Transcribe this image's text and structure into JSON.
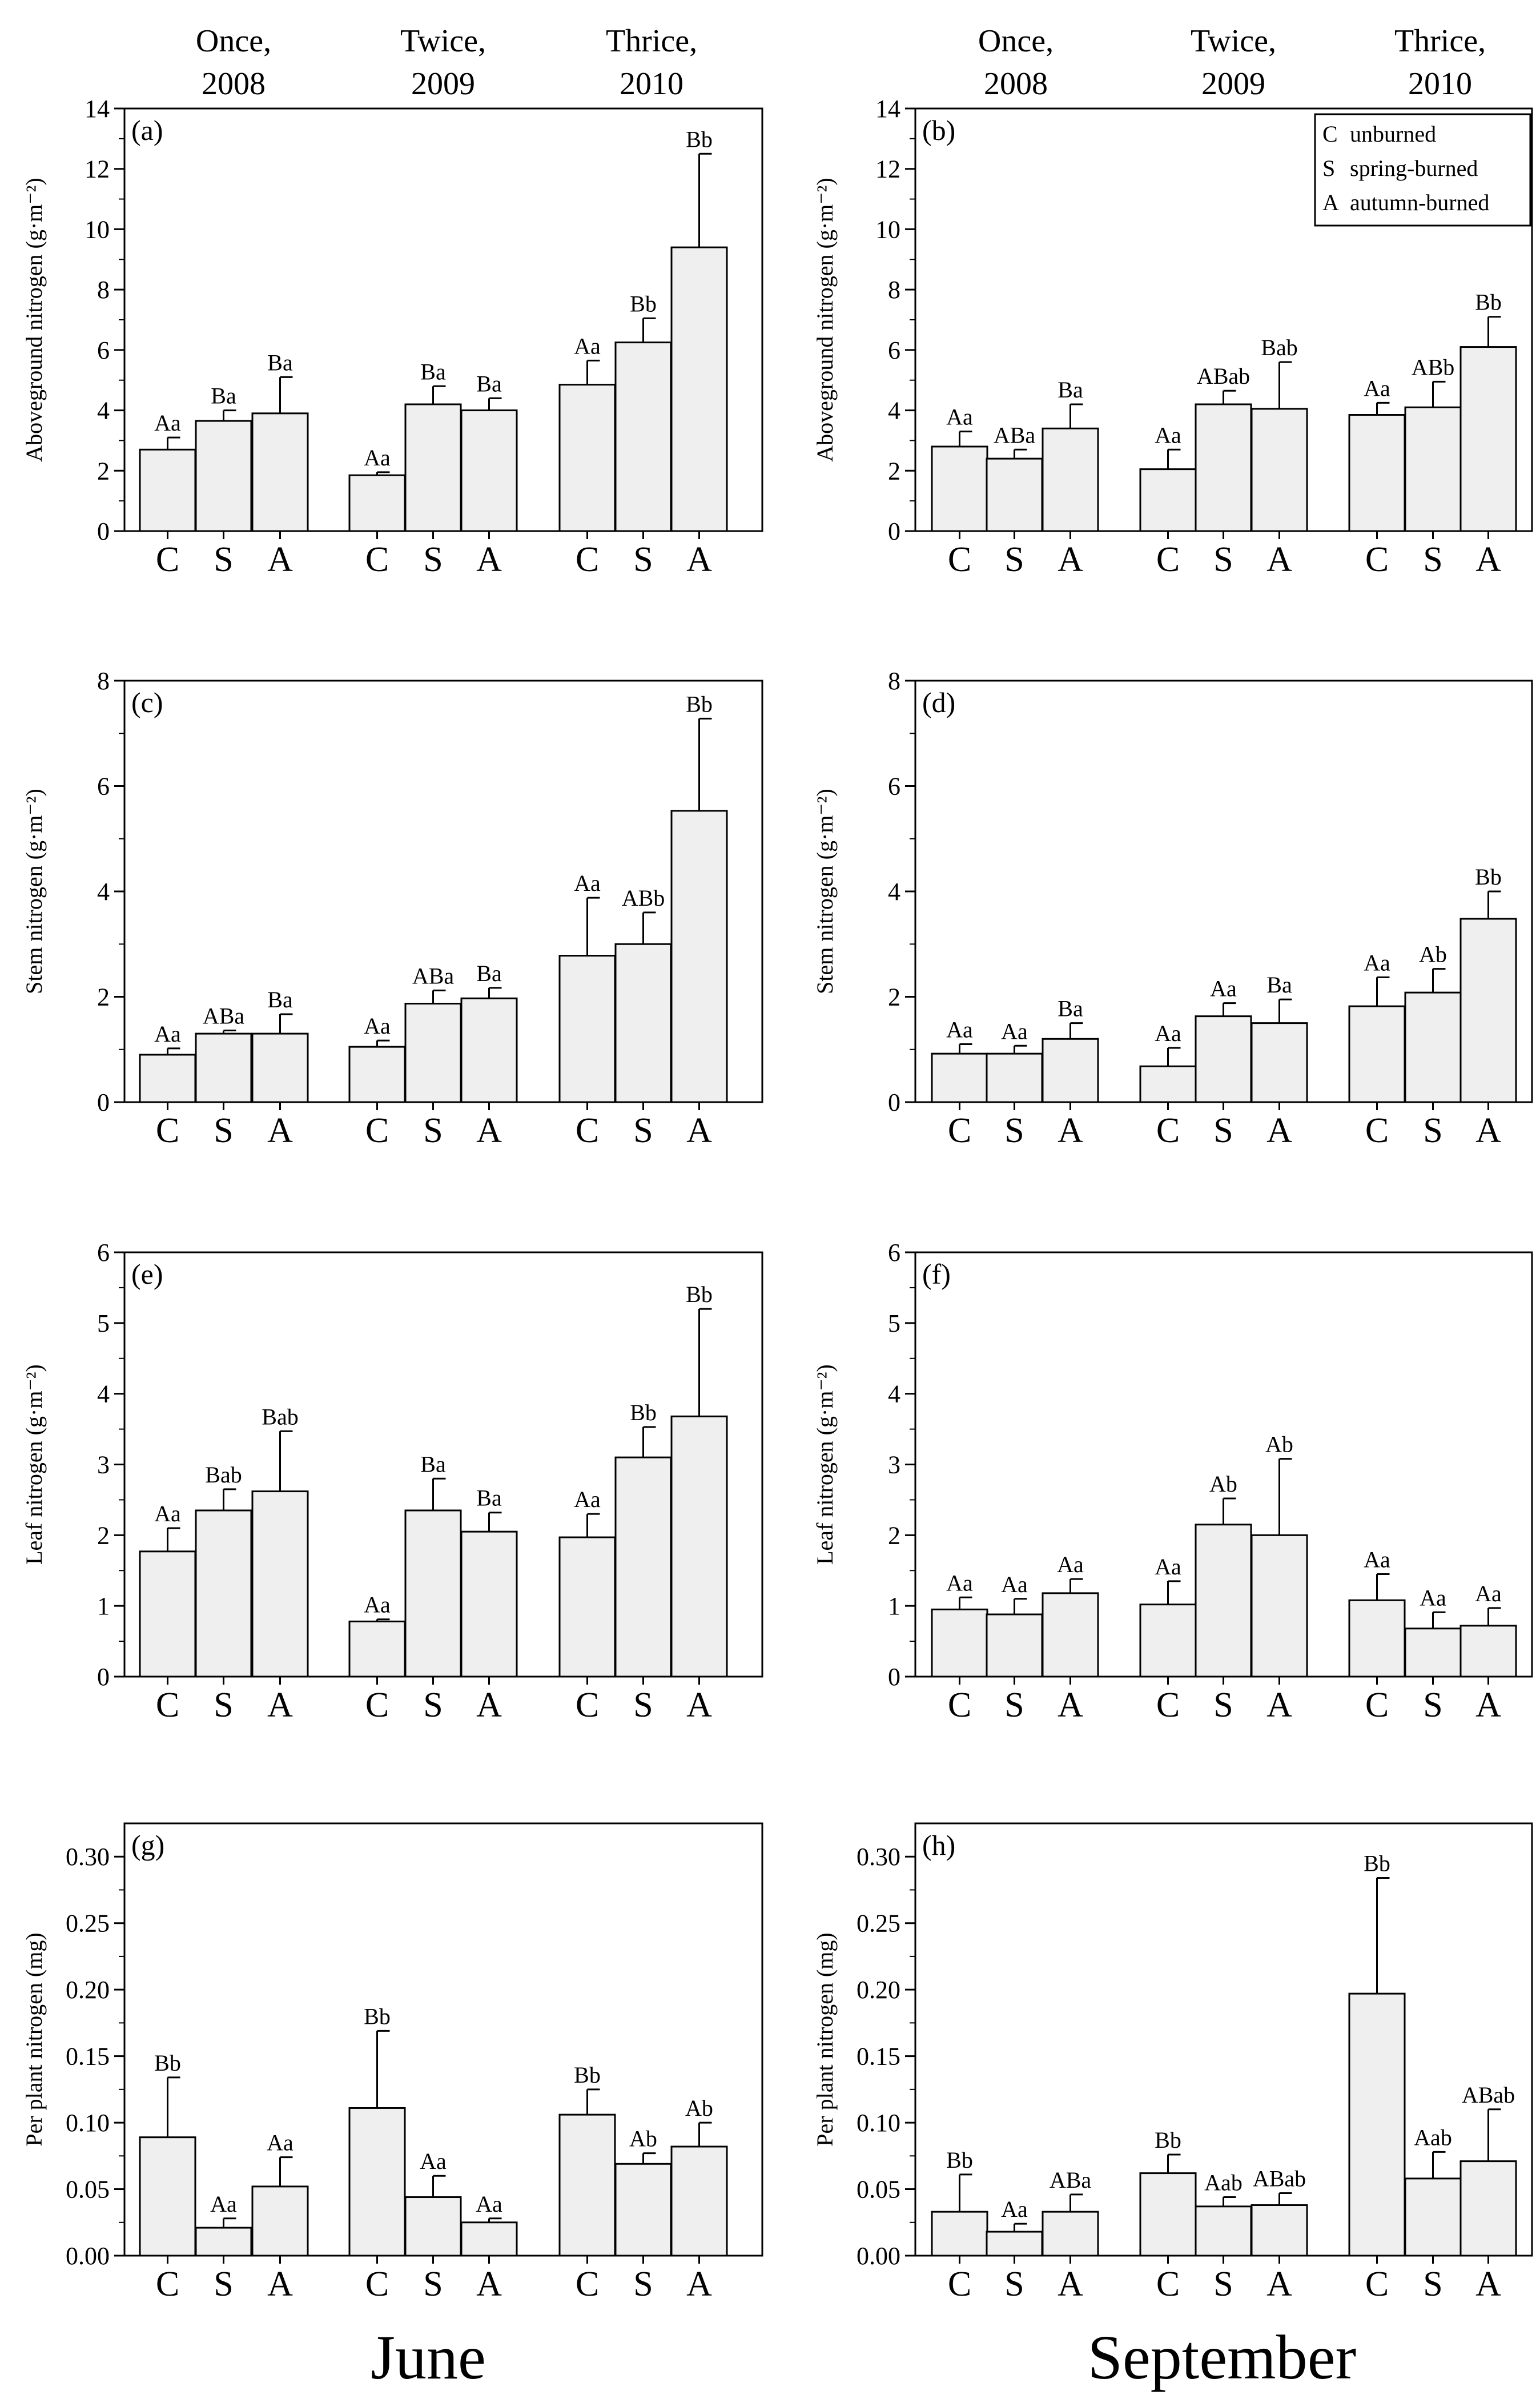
{
  "groups": [
    {
      "line1": "Once,",
      "line2": "2008"
    },
    {
      "line1": "Twice,",
      "line2": "2009"
    },
    {
      "line1": "Thrice,",
      "line2": "2010"
    }
  ],
  "months": {
    "left": "June",
    "right": "September"
  },
  "legend": [
    {
      "key": "C",
      "text": "unburned"
    },
    {
      "key": "S",
      "text": "spring-burned"
    },
    {
      "key": "A",
      "text": "autumn-burned"
    }
  ],
  "colors": {
    "bar_fill": "#efefef",
    "stroke": "#000000"
  },
  "chart_data": [
    {
      "type": "bar",
      "panel": "(a)",
      "ylabel": "Aboveground nitrogen (g·m⁻²)",
      "ylim": [
        0,
        14
      ],
      "yticks": [
        "0",
        "2",
        "4",
        "6",
        "8",
        "10",
        "12",
        "14"
      ],
      "categories": [
        "C",
        "S",
        "A"
      ],
      "groups": [
        "Once, 2008",
        "Twice, 2009",
        "Thrice, 2010"
      ],
      "values": [
        [
          2.7,
          3.65,
          3.9
        ],
        [
          1.85,
          4.2,
          4.0
        ],
        [
          4.85,
          6.25,
          9.4
        ]
      ],
      "errors": [
        [
          0.4,
          0.35,
          1.2
        ],
        [
          0.1,
          0.6,
          0.4
        ],
        [
          0.8,
          0.8,
          3.1
        ]
      ],
      "letters": [
        [
          "Aa",
          "Ba",
          "Ba"
        ],
        [
          "Aa",
          "Ba",
          "Ba"
        ],
        [
          "Aa",
          "Bb",
          "Bb"
        ]
      ]
    },
    {
      "type": "bar",
      "panel": "(b)",
      "ylabel": "Aboveground nitrogen (g·m⁻²)",
      "ylim": [
        0,
        14
      ],
      "yticks": [
        "0",
        "2",
        "4",
        "6",
        "8",
        "10",
        "12",
        "14"
      ],
      "categories": [
        "C",
        "S",
        "A"
      ],
      "groups": [
        "Once, 2008",
        "Twice, 2009",
        "Thrice, 2010"
      ],
      "values": [
        [
          2.8,
          2.4,
          3.4
        ],
        [
          2.05,
          4.2,
          4.05
        ],
        [
          3.85,
          4.1,
          6.1
        ]
      ],
      "errors": [
        [
          0.5,
          0.3,
          0.8
        ],
        [
          0.65,
          0.45,
          1.55
        ],
        [
          0.4,
          0.85,
          1.0
        ]
      ],
      "letters": [
        [
          "Aa",
          "ABa",
          "Ba"
        ],
        [
          "Aa",
          "ABab",
          "Bab"
        ],
        [
          "Aa",
          "ABb",
          "Bb"
        ]
      ]
    },
    {
      "type": "bar",
      "panel": "(c)",
      "ylabel": "Stem nitrogen (g·m⁻²)",
      "ylim": [
        0,
        8
      ],
      "yticks": [
        "0",
        "2",
        "4",
        "6",
        "8"
      ],
      "categories": [
        "C",
        "S",
        "A"
      ],
      "groups": [
        "Once, 2008",
        "Twice, 2009",
        "Thrice, 2010"
      ],
      "values": [
        [
          0.9,
          1.3,
          1.3
        ],
        [
          1.05,
          1.87,
          1.97
        ],
        [
          2.78,
          3.0,
          5.53
        ]
      ],
      "errors": [
        [
          0.12,
          0.06,
          0.37
        ],
        [
          0.12,
          0.25,
          0.2
        ],
        [
          1.1,
          0.6,
          1.75
        ]
      ],
      "letters": [
        [
          "Aa",
          "ABa",
          "Ba"
        ],
        [
          "Aa",
          "ABa",
          "Ba"
        ],
        [
          "Aa",
          "ABb",
          "Bb"
        ]
      ]
    },
    {
      "type": "bar",
      "panel": "(d)",
      "ylabel": "Stem nitrogen (g·m⁻²)",
      "ylim": [
        0,
        8
      ],
      "yticks": [
        "0",
        "2",
        "4",
        "6",
        "8"
      ],
      "categories": [
        "C",
        "S",
        "A"
      ],
      "groups": [
        "Once, 2008",
        "Twice, 2009",
        "Thrice, 2010"
      ],
      "values": [
        [
          0.92,
          0.92,
          1.2
        ],
        [
          0.68,
          1.63,
          1.5
        ],
        [
          1.82,
          2.08,
          3.48
        ]
      ],
      "errors": [
        [
          0.18,
          0.15,
          0.3
        ],
        [
          0.35,
          0.25,
          0.45
        ],
        [
          0.55,
          0.45,
          0.52
        ]
      ],
      "letters": [
        [
          "Aa",
          "Aa",
          "Ba"
        ],
        [
          "Aa",
          "Aa",
          "Ba"
        ],
        [
          "Aa",
          "Ab",
          "Bb"
        ]
      ]
    },
    {
      "type": "bar",
      "panel": "(e)",
      "ylabel": "Leaf nitrogen (g·m⁻²)",
      "ylim": [
        0,
        6
      ],
      "yticks": [
        "0",
        "1",
        "2",
        "3",
        "4",
        "5",
        "6"
      ],
      "categories": [
        "C",
        "S",
        "A"
      ],
      "groups": [
        "Once, 2008",
        "Twice, 2009",
        "Thrice, 2010"
      ],
      "values": [
        [
          1.77,
          2.35,
          2.62
        ],
        [
          0.78,
          2.35,
          2.05
        ],
        [
          1.97,
          3.1,
          3.68
        ]
      ],
      "errors": [
        [
          0.33,
          0.3,
          0.85
        ],
        [
          0.03,
          0.45,
          0.27
        ],
        [
          0.33,
          0.43,
          1.52
        ]
      ],
      "letters": [
        [
          "Aa",
          "Bab",
          "Bab"
        ],
        [
          "Aa",
          "Ba",
          "Ba"
        ],
        [
          "Aa",
          "Bb",
          "Bb"
        ]
      ]
    },
    {
      "type": "bar",
      "panel": "(f)",
      "ylabel": "Leaf nitrogen (g·m⁻²)",
      "ylim": [
        0,
        6
      ],
      "yticks": [
        "0",
        "1",
        "2",
        "3",
        "4",
        "5",
        "6"
      ],
      "categories": [
        "C",
        "S",
        "A"
      ],
      "groups": [
        "Once, 2008",
        "Twice, 2009",
        "Thrice, 2010"
      ],
      "values": [
        [
          0.95,
          0.88,
          1.18
        ],
        [
          1.02,
          2.15,
          2.0
        ],
        [
          1.08,
          0.68,
          0.72
        ]
      ],
      "errors": [
        [
          0.17,
          0.22,
          0.2
        ],
        [
          0.33,
          0.37,
          1.08
        ],
        [
          0.37,
          0.23,
          0.25
        ]
      ],
      "letters": [
        [
          "Aa",
          "Aa",
          "Aa"
        ],
        [
          "Aa",
          "Ab",
          "Ab"
        ],
        [
          "Aa",
          "Aa",
          "Aa"
        ]
      ]
    },
    {
      "type": "bar",
      "panel": "(g)",
      "ylabel": "Per plant nitrogen (mg)",
      "ylim": [
        0,
        0.325
      ],
      "yticks": [
        "0.00",
        "0.05",
        "0.10",
        "0.15",
        "0.20",
        "0.25",
        "0.30"
      ],
      "categories": [
        "C",
        "S",
        "A"
      ],
      "groups": [
        "Once, 2008",
        "Twice, 2009",
        "Thrice, 2010"
      ],
      "values": [
        [
          0.089,
          0.021,
          0.052
        ],
        [
          0.111,
          0.044,
          0.025
        ],
        [
          0.106,
          0.069,
          0.082
        ]
      ],
      "errors": [
        [
          0.045,
          0.007,
          0.022
        ],
        [
          0.058,
          0.016,
          0.003
        ],
        [
          0.019,
          0.008,
          0.018
        ]
      ],
      "letters": [
        [
          "Bb",
          "Aa",
          "Aa"
        ],
        [
          "Bb",
          "Aa",
          "Aa"
        ],
        [
          "Bb",
          "Ab",
          "Ab"
        ]
      ]
    },
    {
      "type": "bar",
      "panel": "(h)",
      "ylabel": "Per plant nitrogen (mg)",
      "ylim": [
        0,
        0.325
      ],
      "yticks": [
        "0.00",
        "0.05",
        "0.10",
        "0.15",
        "0.20",
        "0.25",
        "0.30"
      ],
      "categories": [
        "C",
        "S",
        "A"
      ],
      "groups": [
        "Once, 2008",
        "Twice, 2009",
        "Thrice, 2010"
      ],
      "values": [
        [
          0.033,
          0.018,
          0.033
        ],
        [
          0.062,
          0.037,
          0.038
        ],
        [
          0.197,
          0.058,
          0.071
        ]
      ],
      "errors": [
        [
          0.028,
          0.006,
          0.013
        ],
        [
          0.014,
          0.007,
          0.009
        ],
        [
          0.087,
          0.02,
          0.039
        ]
      ],
      "letters": [
        [
          "Bb",
          "Aa",
          "ABa"
        ],
        [
          "Bb",
          "Aab",
          "ABab"
        ],
        [
          "Bb",
          "Aab",
          "ABab"
        ]
      ]
    }
  ]
}
